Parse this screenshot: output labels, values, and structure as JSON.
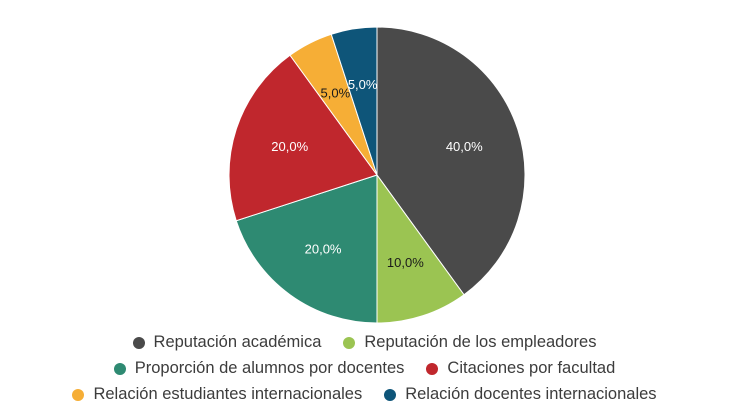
{
  "chart_data": {
    "type": "pie",
    "title": "",
    "start_angle_deg": 0,
    "direction": "clockwise",
    "slices": [
      {
        "label": "Reputación académica",
        "value": 40.0,
        "display": "40,0%",
        "color": "#4a4a4a",
        "label_color": "#ffffff"
      },
      {
        "label": "Reputación de los empleadores",
        "value": 10.0,
        "display": "10,0%",
        "color": "#9bc452",
        "label_color": "#1a1a1a"
      },
      {
        "label": "Proporción de alumnos por docentes",
        "value": 20.0,
        "display": "20,0%",
        "color": "#2e8a72",
        "label_color": "#ffffff"
      },
      {
        "label": "Citaciones por facultad",
        "value": 20.0,
        "display": "20,0%",
        "color": "#c0272d",
        "label_color": "#ffffff"
      },
      {
        "label": "Relación estudiantes internacionales",
        "value": 5.0,
        "display": "5,0%",
        "color": "#f6ae36",
        "label_color": "#1a1a1a"
      },
      {
        "label": "Relación docentes internacionales",
        "value": 5.0,
        "display": "5,0%",
        "color": "#0e5579",
        "label_color": "#ffffff"
      }
    ],
    "legend": {
      "position": "bottom",
      "rows": [
        [
          0,
          1
        ],
        [
          2,
          3
        ],
        [
          4,
          5
        ]
      ]
    }
  }
}
